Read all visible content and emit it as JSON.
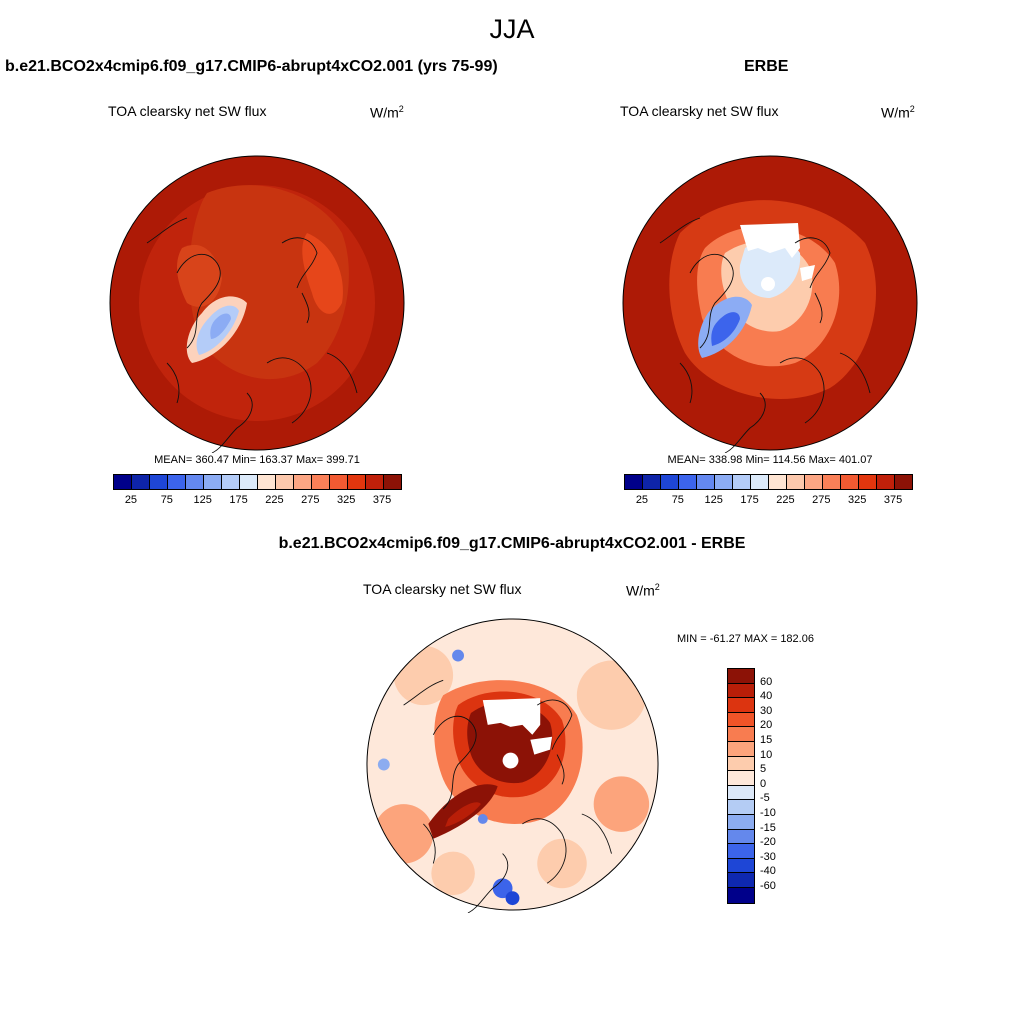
{
  "figure": {
    "season": "JJA"
  },
  "panels": {
    "model": {
      "title": "b.e21.BCO2x4cmip6.f09_g17.CMIP6-abrupt4xCO2.001 (yrs 75-99)",
      "field": "TOA clearsky net SW flux",
      "units_base": "W/m",
      "units_exp": "2",
      "stats": "MEAN= 360.47  Min= 163.37  Max= 399.71",
      "mean": 360.47,
      "min": 163.37,
      "max": 399.71
    },
    "obs": {
      "title": "ERBE",
      "field": "TOA clearsky net SW flux",
      "units_base": "W/m",
      "units_exp": "2",
      "stats": "MEAN= 338.98  Min= 114.56  Max= 401.07",
      "mean": 338.98,
      "min": 114.56,
      "max": 401.07
    },
    "diff": {
      "title": "b.e21.BCO2x4cmip6.f09_g17.CMIP6-abrupt4xCO2.001 - ERBE",
      "field": "TOA clearsky net SW flux",
      "units_base": "W/m",
      "units_exp": "2",
      "stats": "MIN = -61.27 MAX = 182.06",
      "min": -61.27,
      "max": 182.06
    }
  },
  "colorbar_main": {
    "colors": [
      "#00008a",
      "#0e24a8",
      "#1e46d6",
      "#3c64ec",
      "#6488f0",
      "#8cacf4",
      "#b4ccf8",
      "#dceafa",
      "#fee4d2",
      "#fcc8ac",
      "#fca684",
      "#fa8058",
      "#f25a32",
      "#e2360e",
      "#c0200a",
      "#8c1206"
    ],
    "labels": [
      "25",
      "75",
      "125",
      "175",
      "225",
      "275",
      "325",
      "375"
    ]
  },
  "colorbar_diff": {
    "colors": [
      "#8c1206",
      "#b81e08",
      "#dc3410",
      "#f05428",
      "#f87c50",
      "#fca47c",
      "#fdccad",
      "#fee8da",
      "#dce8f8",
      "#b4ccf4",
      "#8cacf0",
      "#6488ec",
      "#3c64ea",
      "#1e46d6",
      "#0e28b0",
      "#00008a"
    ],
    "labels": [
      "60",
      "40",
      "30",
      "20",
      "15",
      "10",
      "5",
      "0",
      "-5",
      "-10",
      "-15",
      "-20",
      "-30",
      "-40",
      "-60"
    ]
  }
}
